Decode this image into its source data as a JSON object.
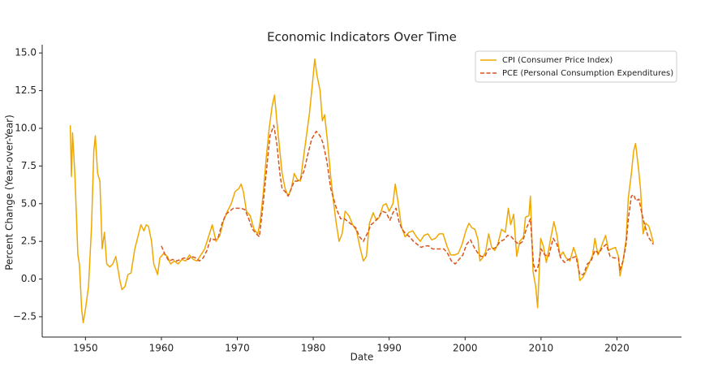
{
  "chart_data": {
    "type": "line",
    "title": "Economic Indicators Over Time",
    "x_label": "Date",
    "y_label": "Percent Change (Year-over-Year)",
    "xlim": [
      1944.3,
      2028.5
    ],
    "ylim": [
      -3.85,
      15.55
    ],
    "xticks": [
      1950,
      1960,
      1970,
      1980,
      1990,
      2000,
      2010,
      2020
    ],
    "yticks": [
      {
        "value": -2.5,
        "label": "−2.5"
      },
      {
        "value": 0,
        "label": "0.0"
      },
      {
        "value": 2.5,
        "label": "2.5"
      },
      {
        "value": 5,
        "label": "5.0"
      },
      {
        "value": 7.5,
        "label": "7.5"
      },
      {
        "value": 10,
        "label": "10.0"
      },
      {
        "value": 12.5,
        "label": "12.5"
      },
      {
        "value": 15,
        "label": "15.0"
      }
    ],
    "grid": false,
    "legend": "upper right",
    "series": [
      {
        "name": "CPI (Consumer Price Index)",
        "color": "#f0a800",
        "linestyle": "solid",
        "x": [
          1948.0,
          1948.15,
          1948.3,
          1948.6,
          1949.0,
          1949.2,
          1949.5,
          1949.7,
          1950.0,
          1950.4,
          1950.8,
          1951.1,
          1951.3,
          1951.6,
          1951.9,
          1952.2,
          1952.5,
          1952.8,
          1953.2,
          1953.6,
          1954.0,
          1954.5,
          1954.8,
          1955.2,
          1955.6,
          1956.0,
          1956.5,
          1957.0,
          1957.3,
          1957.7,
          1958.0,
          1958.3,
          1958.7,
          1959.0,
          1959.5,
          1959.8,
          1960.3,
          1960.8,
          1961.2,
          1961.7,
          1962.2,
          1962.7,
          1963.2,
          1963.7,
          1964.2,
          1964.7,
          1965.2,
          1965.7,
          1966.2,
          1966.7,
          1967.2,
          1967.7,
          1968.2,
          1968.7,
          1969.2,
          1969.7,
          1970.2,
          1970.5,
          1970.8,
          1971.2,
          1971.7,
          1972.2,
          1972.7,
          1973.0,
          1973.4,
          1973.8,
          1974.2,
          1974.6,
          1974.9,
          1975.2,
          1975.5,
          1975.9,
          1976.3,
          1976.7,
          1977.1,
          1977.5,
          1977.9,
          1978.3,
          1978.7,
          1979.1,
          1979.5,
          1979.9,
          1980.2,
          1980.5,
          1980.9,
          1981.2,
          1981.5,
          1981.9,
          1982.3,
          1982.7,
          1983.0,
          1983.4,
          1983.8,
          1984.2,
          1984.7,
          1985.2,
          1985.7,
          1986.2,
          1986.6,
          1987.0,
          1987.4,
          1987.9,
          1988.3,
          1988.7,
          1989.2,
          1989.6,
          1990.0,
          1990.5,
          1990.8,
          1991.2,
          1991.6,
          1992.1,
          1992.6,
          1993.1,
          1993.6,
          1994.1,
          1994.6,
          1995.1,
          1995.6,
          1996.1,
          1996.6,
          1997.1,
          1997.6,
          1998.1,
          1998.6,
          1999.1,
          1999.6,
          2000.1,
          2000.5,
          2000.9,
          2001.3,
          2001.7,
          2001.95,
          2002.3,
          2002.7,
          2003.1,
          2003.5,
          2003.9,
          2004.3,
          2004.8,
          2005.3,
          2005.7,
          2006.0,
          2006.4,
          2006.8,
          2007.2,
          2007.7,
          2007.95,
          2008.4,
          2008.6,
          2008.95,
          2009.3,
          2009.55,
          2009.95,
          2010.3,
          2010.7,
          2011.2,
          2011.7,
          2012.1,
          2012.5,
          2012.9,
          2013.3,
          2013.8,
          2014.3,
          2014.8,
          2015.1,
          2015.5,
          2015.9,
          2016.3,
          2016.8,
          2017.1,
          2017.5,
          2017.9,
          2018.5,
          2018.9,
          2019.3,
          2019.8,
          2020.2,
          2020.4,
          2020.8,
          2021.2,
          2021.5,
          2021.9,
          2022.2,
          2022.45,
          2022.8,
          2023.1,
          2023.45,
          2023.8,
          2024.2,
          2024.5,
          2024.8
        ],
        "values": [
          10.2,
          6.8,
          9.7,
          7.0,
          1.6,
          1.0,
          -2.0,
          -2.9,
          -2.0,
          -0.5,
          3.5,
          8.5,
          9.5,
          7.0,
          6.5,
          2.0,
          3.1,
          1.0,
          0.8,
          1.0,
          1.5,
          0.0,
          -0.7,
          -0.5,
          0.3,
          0.4,
          2.0,
          3.0,
          3.6,
          3.2,
          3.6,
          3.5,
          2.5,
          1.0,
          0.3,
          1.4,
          1.7,
          1.5,
          1.0,
          1.2,
          1.0,
          1.3,
          1.2,
          1.6,
          1.3,
          1.2,
          1.6,
          2.0,
          2.8,
          3.6,
          2.5,
          2.9,
          3.9,
          4.5,
          5.0,
          5.8,
          6.0,
          6.3,
          5.8,
          4.5,
          4.2,
          3.3,
          3.0,
          3.8,
          5.6,
          8.0,
          10.0,
          11.5,
          12.2,
          10.5,
          9.0,
          7.0,
          6.0,
          5.5,
          6.0,
          7.0,
          6.6,
          6.5,
          8.0,
          9.5,
          11.0,
          13.0,
          14.6,
          13.5,
          12.5,
          10.5,
          10.9,
          9.0,
          6.8,
          5.0,
          3.8,
          2.5,
          3.0,
          4.5,
          4.2,
          3.6,
          3.2,
          2.0,
          1.2,
          1.5,
          3.7,
          4.4,
          3.9,
          4.1,
          4.9,
          5.0,
          4.5,
          5.0,
          6.3,
          5.0,
          3.5,
          2.8,
          3.1,
          3.2,
          2.8,
          2.5,
          2.9,
          3.0,
          2.6,
          2.7,
          3.0,
          3.0,
          2.2,
          1.6,
          1.6,
          1.7,
          2.3,
          3.2,
          3.7,
          3.4,
          3.3,
          2.6,
          1.2,
          1.4,
          1.8,
          3.0,
          2.1,
          1.9,
          2.3,
          3.3,
          3.1,
          4.7,
          3.6,
          4.3,
          1.5,
          2.5,
          2.8,
          4.1,
          4.2,
          5.5,
          0.5,
          -0.5,
          -1.9,
          2.7,
          2.2,
          1.1,
          2.5,
          3.8,
          2.9,
          1.5,
          1.8,
          1.4,
          1.2,
          2.1,
          1.3,
          -0.1,
          0.1,
          0.5,
          1.0,
          1.6,
          2.7,
          1.6,
          2.1,
          2.9,
          1.9,
          2.0,
          2.1,
          1.5,
          0.2,
          1.2,
          2.6,
          5.4,
          7.0,
          8.5,
          9.0,
          7.5,
          6.0,
          3.0,
          3.7,
          3.5,
          3.0,
          2.4
        ]
      },
      {
        "name": "PCE (Personal Consumption Expenditures)",
        "color": "#d9541e",
        "linestyle": "dashed",
        "x": [
          1960.0,
          1960.5,
          1961.0,
          1961.5,
          1962.0,
          1962.5,
          1963.0,
          1963.5,
          1964.0,
          1964.5,
          1965.0,
          1965.5,
          1966.0,
          1966.5,
          1967.0,
          1967.5,
          1968.0,
          1968.5,
          1969.0,
          1969.5,
          1970.0,
          1970.5,
          1971.0,
          1971.5,
          1972.0,
          1972.5,
          1972.9,
          1973.3,
          1973.8,
          1974.3,
          1974.8,
          1975.2,
          1975.6,
          1975.9,
          1976.3,
          1976.7,
          1977.1,
          1977.5,
          1977.9,
          1978.3,
          1978.8,
          1979.3,
          1979.8,
          1980.4,
          1980.9,
          1981.3,
          1981.8,
          1982.3,
          1982.7,
          1983.1,
          1983.6,
          1984.1,
          1984.6,
          1985.1,
          1985.6,
          1986.1,
          1986.6,
          1987.1,
          1987.6,
          1988.1,
          1988.6,
          1989.1,
          1989.6,
          1990.1,
          1990.5,
          1990.9,
          1991.3,
          1991.7,
          1992.2,
          1992.7,
          1993.2,
          1993.7,
          1994.2,
          1994.7,
          1995.2,
          1995.7,
          1996.2,
          1996.7,
          1997.2,
          1997.7,
          1998.2,
          1998.7,
          1999.2,
          1999.7,
          2000.2,
          2000.7,
          2001.2,
          2001.7,
          2002.1,
          2002.6,
          2003.1,
          2003.6,
          2004.1,
          2004.6,
          2005.1,
          2005.6,
          2006.1,
          2006.6,
          2007.1,
          2007.6,
          2008.1,
          2008.6,
          2009.0,
          2009.3,
          2009.6,
          2010.0,
          2010.5,
          2011.0,
          2011.6,
          2012.1,
          2012.6,
          2013.1,
          2013.6,
          2014.1,
          2014.6,
          2015.1,
          2015.6,
          2016.1,
          2016.6,
          2017.1,
          2017.6,
          2018.1,
          2018.6,
          2019.1,
          2019.6,
          2020.2,
          2020.4,
          2020.8,
          2021.2,
          2021.5,
          2021.9,
          2022.2,
          2022.5,
          2022.9,
          2023.3,
          2023.7,
          2024.1,
          2024.4,
          2024.8
        ],
        "values": [
          2.2,
          1.6,
          1.2,
          1.3,
          1.2,
          1.3,
          1.4,
          1.3,
          1.5,
          1.4,
          1.2,
          1.4,
          1.9,
          2.7,
          2.6,
          2.8,
          3.7,
          4.3,
          4.5,
          4.7,
          4.7,
          4.7,
          4.6,
          4.0,
          3.3,
          3.0,
          2.8,
          4.5,
          7.0,
          9.5,
          10.2,
          9.0,
          7.0,
          6.0,
          5.8,
          5.5,
          6.0,
          6.5,
          6.5,
          6.6,
          7.2,
          8.3,
          9.3,
          9.8,
          9.5,
          9.0,
          7.8,
          6.0,
          5.3,
          4.6,
          4.0,
          4.0,
          3.8,
          3.6,
          3.4,
          2.8,
          2.5,
          3.0,
          3.6,
          3.8,
          4.1,
          4.5,
          4.4,
          3.9,
          4.4,
          4.7,
          3.8,
          3.3,
          3.0,
          2.8,
          2.5,
          2.3,
          2.1,
          2.2,
          2.2,
          2.0,
          2.0,
          2.0,
          2.0,
          1.7,
          1.2,
          1.0,
          1.3,
          1.6,
          2.3,
          2.6,
          2.1,
          1.7,
          1.5,
          1.5,
          2.0,
          2.0,
          2.1,
          2.5,
          2.6,
          2.9,
          2.8,
          2.5,
          2.3,
          2.5,
          3.4,
          4.0,
          1.0,
          0.5,
          0.8,
          2.0,
          1.6,
          1.5,
          2.7,
          2.3,
          1.4,
          1.1,
          1.3,
          1.4,
          1.5,
          0.3,
          0.3,
          1.0,
          1.2,
          1.9,
          1.7,
          2.1,
          2.3,
          1.5,
          1.4,
          1.4,
          0.6,
          1.2,
          2.3,
          4.0,
          5.5,
          5.6,
          5.2,
          5.3,
          4.3,
          3.5,
          2.8,
          2.6,
          2.3
        ]
      }
    ]
  }
}
